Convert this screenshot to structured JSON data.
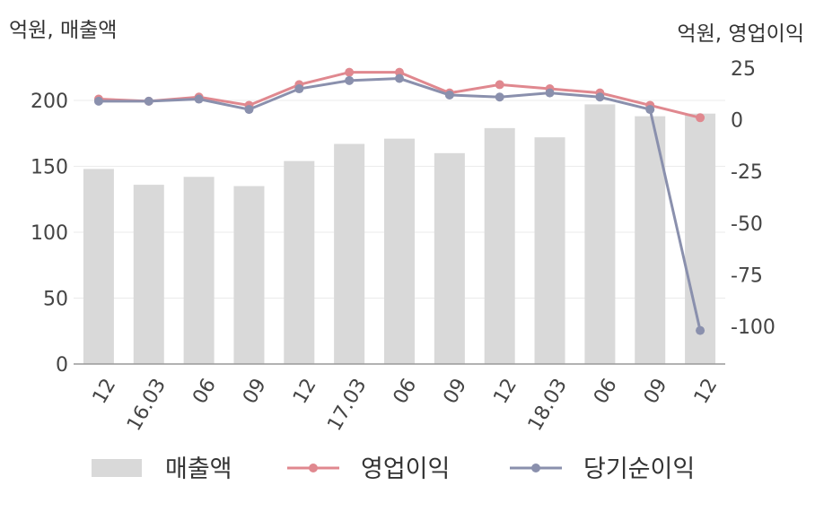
{
  "chart_data": {
    "type": "bar",
    "left_axis_label": "억원, 매출액",
    "right_axis_label": "억원, 영업이익",
    "categories": [
      "12",
      "16.03",
      "06",
      "09",
      "12",
      "17.03",
      "06",
      "09",
      "12",
      "18.03",
      "06",
      "09",
      "12"
    ],
    "ylim_left": [
      0,
      200
    ],
    "yticks_left": [
      0,
      50,
      100,
      150,
      200
    ],
    "ylim_right": [
      -100,
      25
    ],
    "yticks_right": [
      25,
      0,
      -25,
      -50,
      -75,
      -100
    ],
    "grid": true,
    "legend_position": "bottom",
    "series": [
      {
        "name": "매출액",
        "type": "bar",
        "axis": "left",
        "color": "#d9d9d9",
        "values": [
          148,
          136,
          142,
          135,
          154,
          167,
          171,
          160,
          179,
          172,
          197,
          188,
          190
        ]
      },
      {
        "name": "영업이익",
        "type": "line",
        "axis": "right",
        "color": "#e0888f",
        "values": [
          10,
          9,
          11,
          7,
          17,
          23,
          23,
          13,
          17,
          15,
          13,
          7,
          1
        ]
      },
      {
        "name": "당기순이익",
        "type": "line",
        "axis": "right",
        "color": "#8a90ad",
        "values": [
          9,
          9,
          10,
          5,
          15,
          19,
          20,
          12,
          11,
          13,
          11,
          5,
          -102
        ]
      }
    ]
  }
}
